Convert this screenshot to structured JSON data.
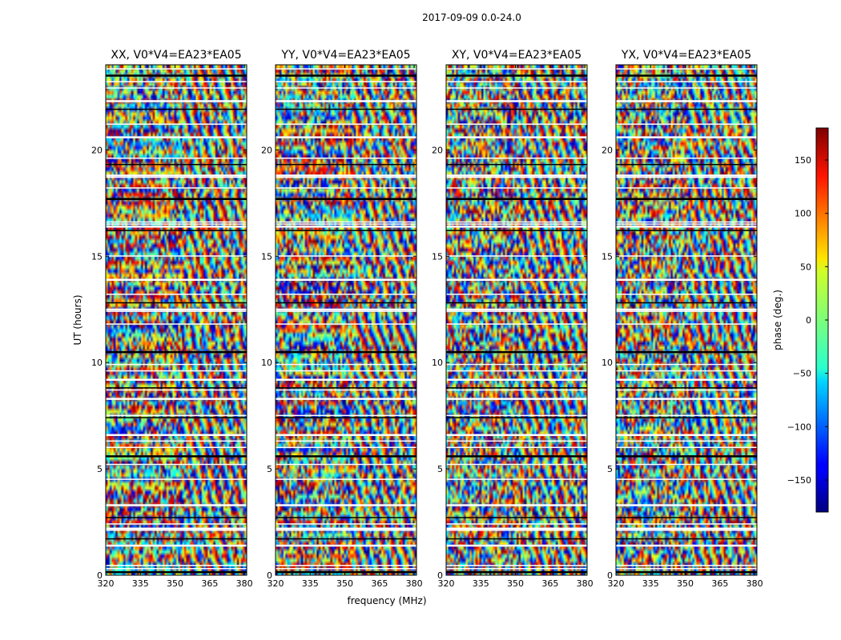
{
  "chart_data": {
    "type": "heatmap",
    "title": "2017-09-09 0.0-24.0",
    "xlabel": "frequency (MHz)",
    "ylabel": "UT (hours)",
    "xlim": [
      320,
      381
    ],
    "ylim": [
      0,
      24
    ],
    "xticks": [
      320,
      335,
      350,
      365,
      380
    ],
    "yticks": [
      0,
      5,
      10,
      15,
      20
    ],
    "panels": [
      {
        "title": "XX, V0*V4=EA23*EA05",
        "pol": "XX"
      },
      {
        "title": "YY, V0*V4=EA23*EA05",
        "pol": "YY"
      },
      {
        "title": "XY, V0*V4=EA23*EA05",
        "pol": "XY"
      },
      {
        "title": "YX, V0*V4=EA23*EA05",
        "pol": "YX"
      }
    ],
    "flagged_ut_hours": [
      0.15,
      0.3,
      0.45,
      1.4,
      1.7,
      2.1,
      2.2,
      2.4,
      2.7,
      3.3,
      4.5,
      5.2,
      5.6,
      6.0,
      6.3,
      6.6,
      7.4,
      7.5,
      8.3,
      8.7,
      8.8,
      9.2,
      9.6,
      9.9,
      10.5,
      11.8,
      12.4,
      12.5,
      12.8,
      13.2,
      13.9,
      15.0,
      16.2,
      16.4,
      16.5,
      16.6,
      17.7,
      18.2,
      18.7,
      18.8,
      19.3,
      19.6,
      20.6,
      21.2,
      21.9,
      22.3,
      22.9,
      23.2,
      23.5,
      23.8
    ],
    "colorbar": {
      "label": "phase (deg.)",
      "range": [
        -180,
        180
      ],
      "ticks": [
        150,
        100,
        50,
        0,
        -50,
        -100,
        -150
      ],
      "tick_labels": [
        "150",
        "100",
        "50",
        "0",
        "−50",
        "−100",
        "−150"
      ],
      "colormap": "jet"
    }
  }
}
